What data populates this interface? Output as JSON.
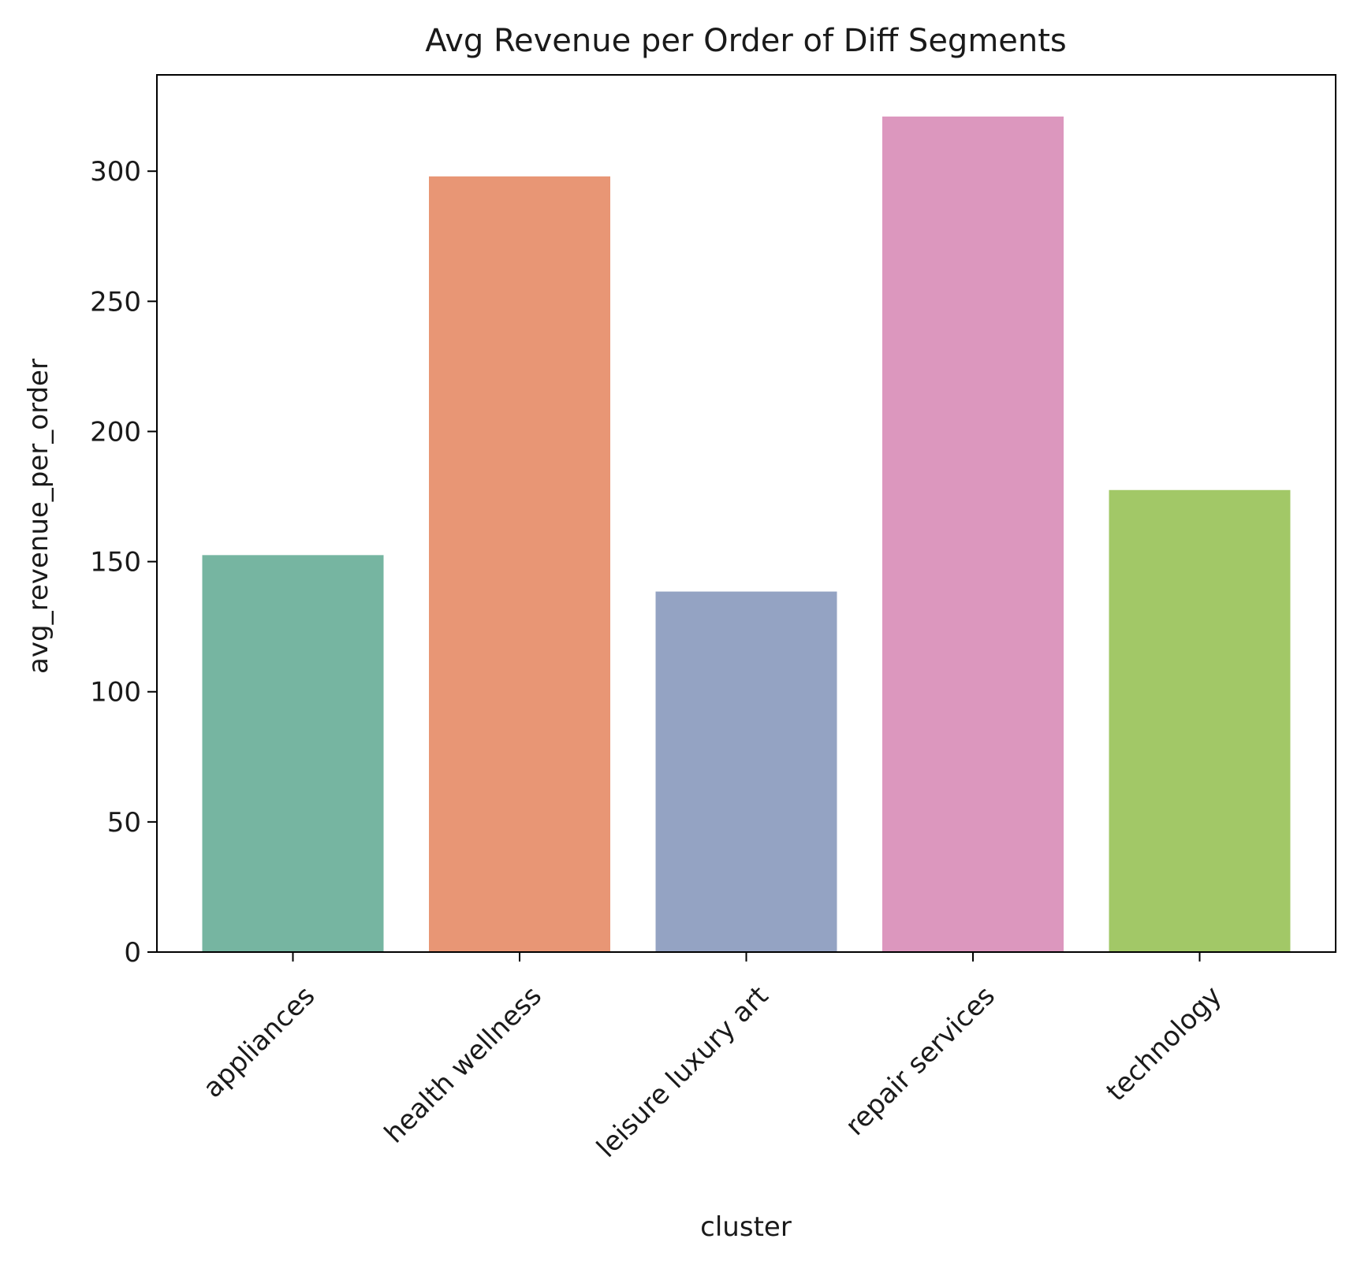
{
  "chart_data": {
    "type": "bar",
    "title": "Avg Revenue per Order of Diff Segments",
    "xlabel": "cluster",
    "ylabel": "avg_revenue_per_order",
    "categories": [
      "appliances",
      "health wellness",
      "leisure luxury art",
      "repair services",
      "technology"
    ],
    "values": [
      152.5,
      298,
      138.5,
      321,
      177.5
    ],
    "colors": [
      "#76b5a1",
      "#e89675",
      "#94a3c3",
      "#dc97be",
      "#a2c867"
    ],
    "ylim": [
      0,
      337
    ],
    "yticks": [
      0,
      50,
      100,
      150,
      200,
      250,
      300
    ],
    "grid": false,
    "legend": "none"
  }
}
